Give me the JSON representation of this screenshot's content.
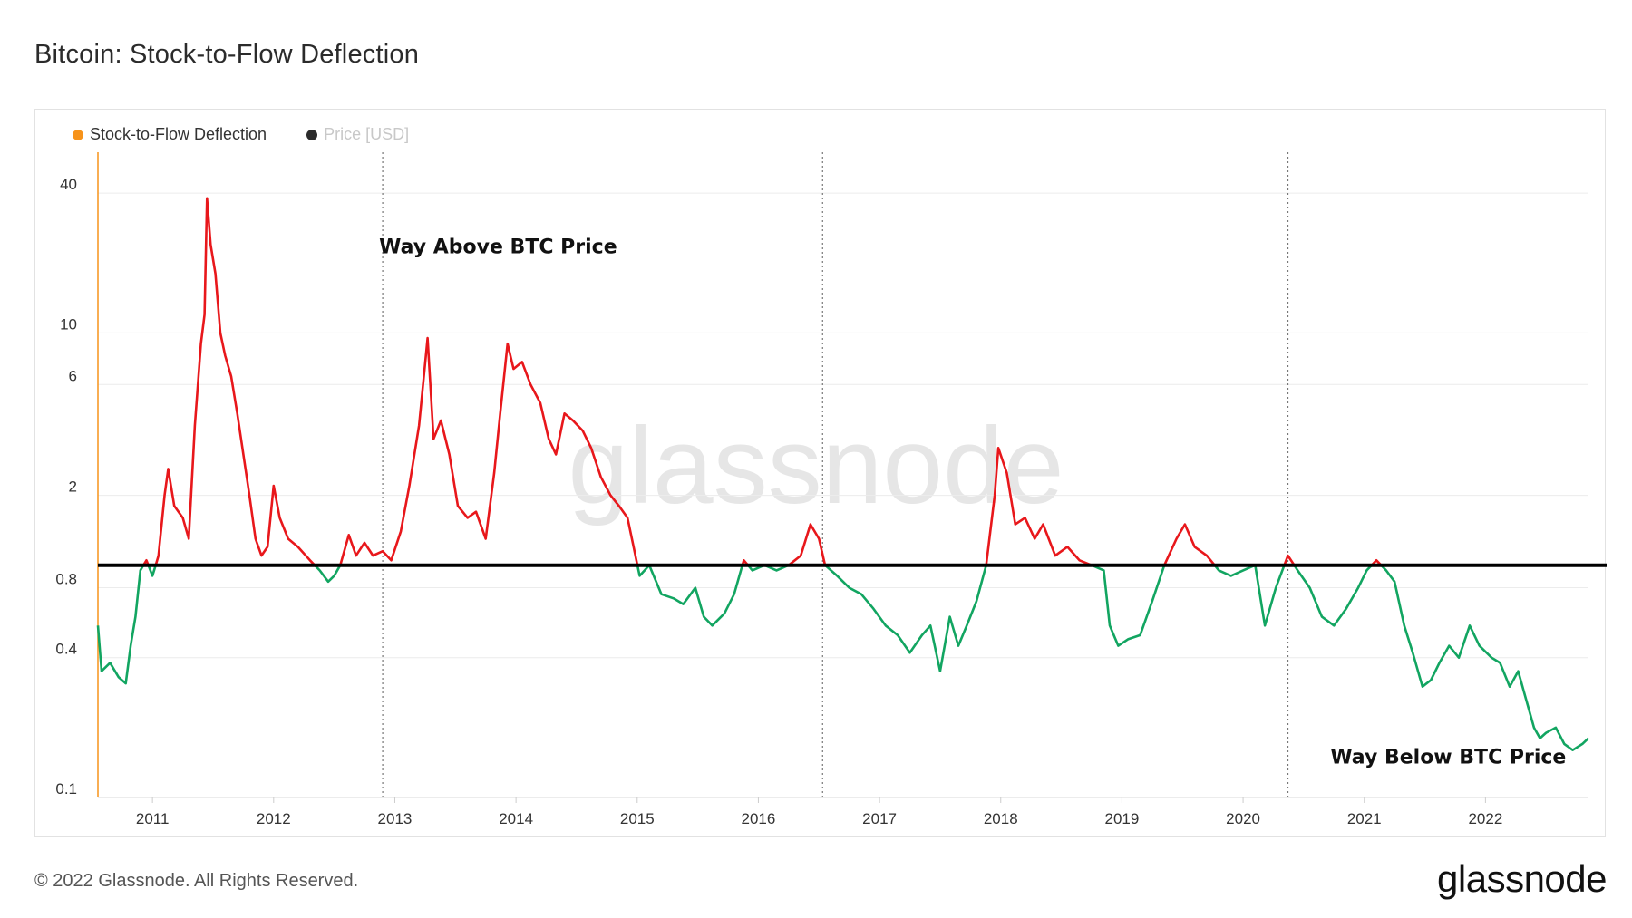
{
  "title": "Bitcoin: Stock-to-Flow Deflection",
  "legend": [
    {
      "label": "Stock-to-Flow Deflection",
      "color": "#f7931a",
      "muted": false
    },
    {
      "label": "Price [USD]",
      "color": "#2b2b2b",
      "muted": true
    }
  ],
  "footer": "© 2022 Glassnode. All Rights Reserved.",
  "brand": "glassnode",
  "watermark": "glassnode",
  "colors": {
    "above": "#e8171b",
    "below": "#12a561",
    "baseline": "#000000",
    "grid": "#ececec",
    "axis_line": "#f7931a"
  },
  "chart_data": {
    "type": "line",
    "title": "Bitcoin: Stock-to-Flow Deflection",
    "y_scale": "log",
    "ylim": [
      0.1,
      60
    ],
    "y_ticks": [
      {
        "value": 40,
        "label": "40"
      },
      {
        "value": 10,
        "label": "10"
      },
      {
        "value": 6,
        "label": "6"
      },
      {
        "value": 2,
        "label": "2"
      },
      {
        "value": 0.8,
        "label": "0.8"
      },
      {
        "value": 0.4,
        "label": "0.4"
      },
      {
        "value": 0.1,
        "label": "0.1"
      }
    ],
    "x_ticks": [
      "2011",
      "2012",
      "2013",
      "2014",
      "2015",
      "2016",
      "2017",
      "2018",
      "2019",
      "2020",
      "2021",
      "2022"
    ],
    "xlim": [
      2010.55,
      2022.85
    ],
    "baseline": 1,
    "halving_dates": [
      2012.9,
      2016.53,
      2020.37
    ],
    "annotations": [
      {
        "text": "Way Above BTC Price",
        "x": 2012.9,
        "y": 22
      },
      {
        "text": "Way Below BTC Price",
        "x": 2020.75,
        "y": 0.14
      }
    ],
    "series": [
      {
        "name": "Stock-to-Flow Deflection",
        "points": [
          [
            2010.55,
            0.55
          ],
          [
            2010.58,
            0.35
          ],
          [
            2010.65,
            0.38
          ],
          [
            2010.72,
            0.33
          ],
          [
            2010.78,
            0.31
          ],
          [
            2010.82,
            0.45
          ],
          [
            2010.86,
            0.6
          ],
          [
            2010.9,
            0.95
          ],
          [
            2010.95,
            1.05
          ],
          [
            2011.0,
            0.9
          ],
          [
            2011.05,
            1.1
          ],
          [
            2011.1,
            2.0
          ],
          [
            2011.13,
            2.6
          ],
          [
            2011.18,
            1.8
          ],
          [
            2011.25,
            1.6
          ],
          [
            2011.3,
            1.3
          ],
          [
            2011.35,
            4.0
          ],
          [
            2011.4,
            9.0
          ],
          [
            2011.43,
            12.0
          ],
          [
            2011.45,
            38.0
          ],
          [
            2011.48,
            24.0
          ],
          [
            2011.52,
            18.0
          ],
          [
            2011.56,
            10.0
          ],
          [
            2011.6,
            8.0
          ],
          [
            2011.65,
            6.5
          ],
          [
            2011.7,
            4.5
          ],
          [
            2011.75,
            3.0
          ],
          [
            2011.8,
            2.0
          ],
          [
            2011.85,
            1.3
          ],
          [
            2011.9,
            1.1
          ],
          [
            2011.95,
            1.2
          ],
          [
            2012.0,
            2.2
          ],
          [
            2012.05,
            1.6
          ],
          [
            2012.12,
            1.3
          ],
          [
            2012.2,
            1.2
          ],
          [
            2012.3,
            1.05
          ],
          [
            2012.38,
            0.95
          ],
          [
            2012.45,
            0.85
          ],
          [
            2012.5,
            0.9
          ],
          [
            2012.55,
            1.0
          ],
          [
            2012.62,
            1.35
          ],
          [
            2012.68,
            1.1
          ],
          [
            2012.75,
            1.25
          ],
          [
            2012.82,
            1.1
          ],
          [
            2012.9,
            1.15
          ],
          [
            2012.97,
            1.05
          ],
          [
            2013.05,
            1.4
          ],
          [
            2013.12,
            2.2
          ],
          [
            2013.2,
            4.0
          ],
          [
            2013.27,
            9.5
          ],
          [
            2013.32,
            3.5
          ],
          [
            2013.38,
            4.2
          ],
          [
            2013.45,
            3.0
          ],
          [
            2013.52,
            1.8
          ],
          [
            2013.6,
            1.6
          ],
          [
            2013.67,
            1.7
          ],
          [
            2013.75,
            1.3
          ],
          [
            2013.82,
            2.5
          ],
          [
            2013.87,
            4.5
          ],
          [
            2013.93,
            9.0
          ],
          [
            2013.98,
            7.0
          ],
          [
            2014.05,
            7.5
          ],
          [
            2014.12,
            6.0
          ],
          [
            2014.2,
            5.0
          ],
          [
            2014.27,
            3.5
          ],
          [
            2014.33,
            3.0
          ],
          [
            2014.4,
            4.5
          ],
          [
            2014.47,
            4.2
          ],
          [
            2014.55,
            3.8
          ],
          [
            2014.62,
            3.2
          ],
          [
            2014.7,
            2.4
          ],
          [
            2014.78,
            2.0
          ],
          [
            2014.85,
            1.8
          ],
          [
            2014.92,
            1.6
          ],
          [
            2014.97,
            1.2
          ],
          [
            2015.02,
            0.9
          ],
          [
            2015.1,
            1.0
          ],
          [
            2015.2,
            0.75
          ],
          [
            2015.3,
            0.72
          ],
          [
            2015.38,
            0.68
          ],
          [
            2015.48,
            0.8
          ],
          [
            2015.55,
            0.6
          ],
          [
            2015.62,
            0.55
          ],
          [
            2015.72,
            0.62
          ],
          [
            2015.8,
            0.75
          ],
          [
            2015.88,
            1.05
          ],
          [
            2015.95,
            0.95
          ],
          [
            2016.05,
            1.0
          ],
          [
            2016.15,
            0.95
          ],
          [
            2016.25,
            1.0
          ],
          [
            2016.35,
            1.1
          ],
          [
            2016.43,
            1.5
          ],
          [
            2016.5,
            1.3
          ],
          [
            2016.55,
            1.0
          ],
          [
            2016.65,
            0.9
          ],
          [
            2016.75,
            0.8
          ],
          [
            2016.85,
            0.75
          ],
          [
            2016.95,
            0.65
          ],
          [
            2017.05,
            0.55
          ],
          [
            2017.15,
            0.5
          ],
          [
            2017.25,
            0.42
          ],
          [
            2017.35,
            0.5
          ],
          [
            2017.42,
            0.55
          ],
          [
            2017.5,
            0.35
          ],
          [
            2017.58,
            0.6
          ],
          [
            2017.65,
            0.45
          ],
          [
            2017.72,
            0.55
          ],
          [
            2017.8,
            0.7
          ],
          [
            2017.88,
            1.0
          ],
          [
            2017.95,
            2.0
          ],
          [
            2017.98,
            3.2
          ],
          [
            2018.05,
            2.5
          ],
          [
            2018.12,
            1.5
          ],
          [
            2018.2,
            1.6
          ],
          [
            2018.28,
            1.3
          ],
          [
            2018.35,
            1.5
          ],
          [
            2018.45,
            1.1
          ],
          [
            2018.55,
            1.2
          ],
          [
            2018.65,
            1.05
          ],
          [
            2018.75,
            1.0
          ],
          [
            2018.85,
            0.95
          ],
          [
            2018.9,
            0.55
          ],
          [
            2018.97,
            0.45
          ],
          [
            2019.05,
            0.48
          ],
          [
            2019.15,
            0.5
          ],
          [
            2019.25,
            0.7
          ],
          [
            2019.35,
            1.0
          ],
          [
            2019.45,
            1.3
          ],
          [
            2019.52,
            1.5
          ],
          [
            2019.6,
            1.2
          ],
          [
            2019.7,
            1.1
          ],
          [
            2019.8,
            0.95
          ],
          [
            2019.9,
            0.9
          ],
          [
            2020.0,
            0.95
          ],
          [
            2020.1,
            1.0
          ],
          [
            2020.18,
            0.55
          ],
          [
            2020.27,
            0.8
          ],
          [
            2020.37,
            1.1
          ],
          [
            2020.45,
            0.95
          ],
          [
            2020.55,
            0.8
          ],
          [
            2020.65,
            0.6
          ],
          [
            2020.75,
            0.55
          ],
          [
            2020.85,
            0.65
          ],
          [
            2020.95,
            0.8
          ],
          [
            2021.02,
            0.95
          ],
          [
            2021.1,
            1.05
          ],
          [
            2021.18,
            0.95
          ],
          [
            2021.25,
            0.85
          ],
          [
            2021.33,
            0.55
          ],
          [
            2021.4,
            0.42
          ],
          [
            2021.48,
            0.3
          ],
          [
            2021.55,
            0.32
          ],
          [
            2021.62,
            0.38
          ],
          [
            2021.7,
            0.45
          ],
          [
            2021.78,
            0.4
          ],
          [
            2021.87,
            0.55
          ],
          [
            2021.95,
            0.45
          ],
          [
            2022.05,
            0.4
          ],
          [
            2022.12,
            0.38
          ],
          [
            2022.2,
            0.3
          ],
          [
            2022.27,
            0.35
          ],
          [
            2022.33,
            0.27
          ],
          [
            2022.4,
            0.2
          ],
          [
            2022.45,
            0.18
          ],
          [
            2022.5,
            0.19
          ],
          [
            2022.58,
            0.2
          ],
          [
            2022.65,
            0.17
          ],
          [
            2022.72,
            0.16
          ],
          [
            2022.8,
            0.17
          ],
          [
            2022.85,
            0.18
          ]
        ]
      }
    ]
  }
}
